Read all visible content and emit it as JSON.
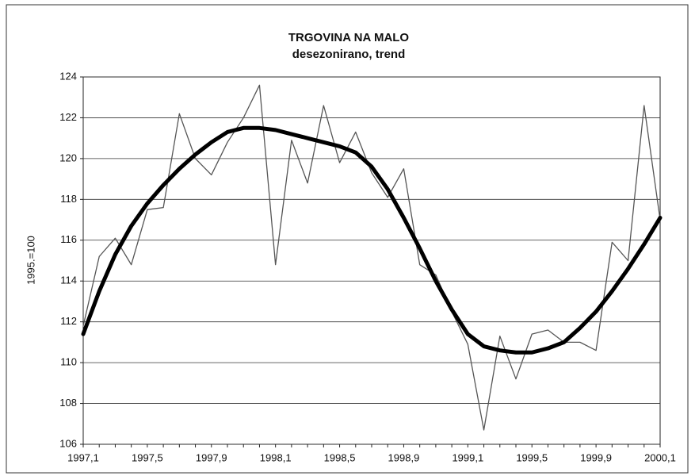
{
  "chart_data": {
    "type": "line",
    "title": "TRGOVINA NA MALO",
    "subtitle": "desezonirano, trend",
    "y_label": "1995.=100",
    "categories": [
      "1997,1",
      null,
      null,
      null,
      "1997,5",
      null,
      null,
      null,
      "1997,9",
      null,
      null,
      null,
      "1998,1",
      null,
      null,
      null,
      "1998,5",
      null,
      null,
      null,
      "1998,9",
      null,
      null,
      null,
      "1999,1",
      null,
      null,
      null,
      "1999,5",
      null,
      null,
      null,
      "1999,9",
      null,
      null,
      null,
      "2000,1"
    ],
    "series": [
      {
        "color": "#555555",
        "width": 1.3,
        "values": [
          111.8,
          115.2,
          116.1,
          114.8,
          117.5,
          117.6,
          122.2,
          120.0,
          119.2,
          120.8,
          122.0,
          123.6,
          114.8,
          120.9,
          118.8,
          122.6,
          119.8,
          121.3,
          119.3,
          118.1,
          119.5,
          114.8,
          114.3,
          112.5,
          110.9,
          106.7,
          111.3,
          109.2,
          111.4,
          111.6,
          111.0,
          111.0,
          110.6,
          115.9,
          115.0,
          122.6,
          117.0
        ]
      },
      {
        "color": "#000000",
        "width": 5,
        "values": [
          111.4,
          113.5,
          115.3,
          116.7,
          117.8,
          118.7,
          119.5,
          120.2,
          120.8,
          121.3,
          121.5,
          121.5,
          121.4,
          121.2,
          121.0,
          120.8,
          120.6,
          120.3,
          119.6,
          118.5,
          117.1,
          115.6,
          114.0,
          112.6,
          111.4,
          110.8,
          110.6,
          110.5,
          110.5,
          110.7,
          111.0,
          111.7,
          112.5,
          113.5,
          114.6,
          115.8,
          117.1
        ]
      }
    ],
    "ylim": [
      106,
      124
    ],
    "yticks": [
      106,
      108,
      110,
      112,
      114,
      116,
      118,
      120,
      122,
      124
    ],
    "grid": true
  }
}
